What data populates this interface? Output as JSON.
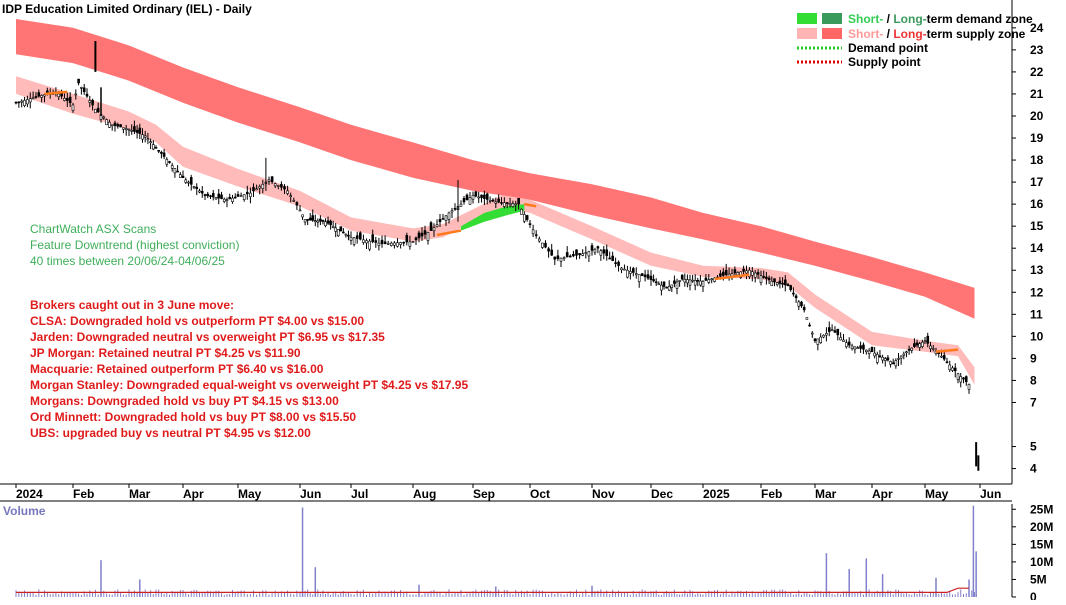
{
  "chart_data": {
    "type": "candlestick",
    "title": "IDP Education Limited Ordinary (IEL) - Daily",
    "y_ticks": [
      4,
      5,
      7,
      8,
      9,
      10,
      11,
      12,
      13,
      14,
      15,
      16,
      17,
      18,
      19,
      20,
      21,
      22,
      23,
      24
    ],
    "ylim": [
      3.3,
      24.9
    ],
    "x_ticks": [
      "2024",
      "Feb",
      "Mar",
      "Apr",
      "May",
      "Jun",
      "Jul",
      "Aug",
      "Sep",
      "Oct",
      "Nov",
      "Dec",
      "2025",
      "Feb",
      "Mar",
      "Apr",
      "May",
      "Jun"
    ],
    "legend": {
      "row1_short": "Short-",
      "row1_sep": " / ",
      "row1_long": "Long-",
      "row1_tail": "term demand zone",
      "row2_short": "Short-",
      "row2_sep": " / ",
      "row2_long": "Long-",
      "row2_tail": "term supply zone",
      "row3": "Demand point",
      "row4": "Supply point",
      "colors": {
        "short_demand": "#33dd33",
        "long_demand": "#3a9a5c",
        "short_supply": "#ffb3b3",
        "long_supply": "#ff6666",
        "demand_point": "#22cc22",
        "supply_point": "#dd0000",
        "text_green": "#33cc55",
        "text_pink": "#ff9999",
        "text_red": "#ee3333"
      }
    },
    "annotation_scan": [
      "ChartWatch ASX Scans",
      "Feature Downtrend (highest conviction)",
      "40 times between 20/06/24-04/06/25"
    ],
    "annotation_brokers_title": "Brokers caught out in 3 June move:",
    "annotation_brokers": [
      "CLSA: Downgraded hold vs outperform PT $4.00 vs $15.00",
      "Jarden: Downgraded neutral vs overweight PT $6.95 vs $17.35",
      "JP Morgan: Retained neutral PT $4.25 vs $11.90",
      "Macquarie: Retained outperform PT $6.40 vs $16.00",
      "Morgan Stanley: Downgraded equal-weight vs overweight PT $4.25 vs $17.95",
      "Morgans: Downgraded hold vs buy PT $4.15 vs $13.00",
      "Ord Minnett: Downgraded hold vs buy PT $8.00 vs $15.50",
      "UBS: upgraded buy vs neutral PT $4.95 vs $12.00"
    ],
    "volume": {
      "label": "Volume",
      "y_ticks": [
        "25M",
        "20M",
        "15M",
        "10M",
        "5M",
        "0"
      ],
      "tick_values": [
        25,
        20,
        15,
        10,
        5,
        0
      ],
      "ylim": [
        0,
        26.5
      ]
    },
    "price_series": [
      {
        "m": 0.0,
        "close": 20.6
      },
      {
        "m": 0.4,
        "close": 20.9
      },
      {
        "m": 0.7,
        "close": 21.1
      },
      {
        "m": 1.0,
        "close": 20.5
      },
      {
        "m": 1.1,
        "close": 21.5
      },
      {
        "m": 1.4,
        "close": 20.3
      },
      {
        "m": 1.7,
        "close": 19.6
      },
      {
        "m": 2.0,
        "close": 19.4
      },
      {
        "m": 2.3,
        "close": 19.1
      },
      {
        "m": 2.6,
        "close": 18.3
      },
      {
        "m": 3.0,
        "close": 17.2
      },
      {
        "m": 3.4,
        "close": 16.4
      },
      {
        "m": 3.8,
        "close": 16.2
      },
      {
        "m": 4.2,
        "close": 16.5
      },
      {
        "m": 4.5,
        "close": 17.1
      },
      {
        "m": 4.8,
        "close": 16.6
      },
      {
        "m": 5.1,
        "close": 15.3
      },
      {
        "m": 5.5,
        "close": 15.2
      },
      {
        "m": 6.0,
        "close": 14.5
      },
      {
        "m": 6.5,
        "close": 14.2
      },
      {
        "m": 7.0,
        "close": 14.3
      },
      {
        "m": 7.3,
        "close": 14.8
      },
      {
        "m": 7.6,
        "close": 15.6
      },
      {
        "m": 8.0,
        "close": 16.4
      },
      {
        "m": 8.4,
        "close": 16.1
      },
      {
        "m": 8.8,
        "close": 16.0
      },
      {
        "m": 9.1,
        "close": 14.6
      },
      {
        "m": 9.4,
        "close": 13.5
      },
      {
        "m": 9.8,
        "close": 13.7
      },
      {
        "m": 10.1,
        "close": 14.0
      },
      {
        "m": 10.5,
        "close": 13.1
      },
      {
        "m": 10.9,
        "close": 12.7
      },
      {
        "m": 11.3,
        "close": 12.2
      },
      {
        "m": 11.6,
        "close": 12.6
      },
      {
        "m": 12.0,
        "close": 12.5
      },
      {
        "m": 12.4,
        "close": 12.8
      },
      {
        "m": 12.8,
        "close": 13.0
      },
      {
        "m": 13.2,
        "close": 12.5
      },
      {
        "m": 13.5,
        "close": 12.3
      },
      {
        "m": 13.8,
        "close": 11.2
      },
      {
        "m": 14.0,
        "close": 9.8
      },
      {
        "m": 14.3,
        "close": 10.3
      },
      {
        "m": 14.6,
        "close": 9.6
      },
      {
        "m": 15.0,
        "close": 9.3
      },
      {
        "m": 15.4,
        "close": 8.8
      },
      {
        "m": 15.7,
        "close": 9.4
      },
      {
        "m": 16.0,
        "close": 9.8
      },
      {
        "m": 16.3,
        "close": 9.1
      },
      {
        "m": 16.6,
        "close": 8.3
      },
      {
        "m": 16.85,
        "close": 7.7
      },
      {
        "m": 16.95,
        "close": 4.3
      }
    ],
    "long_supply_zone": [
      {
        "m": 0.0,
        "lower": 22.8,
        "upper": 24.4
      },
      {
        "m": 1.0,
        "lower": 22.4,
        "upper": 24.0
      },
      {
        "m": 2.0,
        "lower": 21.6,
        "upper": 23.2
      },
      {
        "m": 3.0,
        "lower": 20.6,
        "upper": 22.2
      },
      {
        "m": 4.0,
        "lower": 19.7,
        "upper": 21.3
      },
      {
        "m": 5.0,
        "lower": 18.8,
        "upper": 20.4
      },
      {
        "m": 6.0,
        "lower": 18.0,
        "upper": 19.6
      },
      {
        "m": 7.0,
        "lower": 17.2,
        "upper": 18.8
      },
      {
        "m": 8.0,
        "lower": 16.6,
        "upper": 18.0
      },
      {
        "m": 9.0,
        "lower": 16.2,
        "upper": 17.4
      },
      {
        "m": 10.0,
        "lower": 15.5,
        "upper": 16.9
      },
      {
        "m": 11.0,
        "lower": 14.9,
        "upper": 16.3
      },
      {
        "m": 12.0,
        "lower": 14.4,
        "upper": 15.6
      },
      {
        "m": 13.0,
        "lower": 13.8,
        "upper": 15.0
      },
      {
        "m": 14.0,
        "lower": 13.2,
        "upper": 14.3
      },
      {
        "m": 15.0,
        "lower": 12.5,
        "upper": 13.6
      },
      {
        "m": 16.0,
        "lower": 11.8,
        "upper": 12.9
      },
      {
        "m": 16.9,
        "lower": 10.8,
        "upper": 12.2
      }
    ],
    "short_supply_zone": [
      {
        "m": 0.0,
        "lower": 21.0,
        "upper": 21.8
      },
      {
        "m": 1.0,
        "lower": 20.1,
        "upper": 21.0
      },
      {
        "m": 2.0,
        "lower": 19.4,
        "upper": 20.2
      },
      {
        "m": 2.5,
        "lower": 18.8,
        "upper": 19.6
      },
      {
        "m": 3.0,
        "lower": 17.7,
        "upper": 18.6
      },
      {
        "m": 4.0,
        "lower": 16.8,
        "upper": 17.6
      },
      {
        "m": 5.0,
        "lower": 15.9,
        "upper": 16.6
      },
      {
        "m": 6.0,
        "lower": 14.8,
        "upper": 15.4
      },
      {
        "m": 7.0,
        "lower": 14.3,
        "upper": 14.9
      },
      {
        "m": 7.5,
        "lower": 14.5,
        "upper": 15.1
      },
      {
        "m": 8.5,
        "lower": 15.8,
        "upper": 16.4
      },
      {
        "m": 9.0,
        "lower": 15.6,
        "upper": 16.2
      },
      {
        "m": 10.0,
        "lower": 14.4,
        "upper": 15.0
      },
      {
        "m": 11.0,
        "lower": 13.2,
        "upper": 13.8
      },
      {
        "m": 12.0,
        "lower": 12.7,
        "upper": 13.2
      },
      {
        "m": 13.0,
        "lower": 12.6,
        "upper": 13.1
      },
      {
        "m": 13.5,
        "lower": 12.3,
        "upper": 12.9
      },
      {
        "m": 14.0,
        "lower": 11.3,
        "upper": 11.9
      },
      {
        "m": 15.0,
        "lower": 9.6,
        "upper": 10.2
      },
      {
        "m": 16.0,
        "lower": 9.3,
        "upper": 9.8
      },
      {
        "m": 16.6,
        "lower": 9.1,
        "upper": 9.6
      },
      {
        "m": 16.9,
        "lower": 7.8,
        "upper": 8.6
      }
    ],
    "short_demand_zone": [
      {
        "m": 7.8,
        "lower": 14.8,
        "upper": 15.0
      },
      {
        "m": 8.2,
        "lower": 15.2,
        "upper": 15.6
      },
      {
        "m": 8.6,
        "lower": 15.5,
        "upper": 15.9
      },
      {
        "m": 8.9,
        "lower": 15.7,
        "upper": 16.0
      }
    ],
    "supply_point_segments": [
      {
        "m0": 0.5,
        "m1": 0.9,
        "v0": 21.0,
        "v1": 21.1
      },
      {
        "m0": 7.4,
        "m1": 7.8,
        "v0": 14.6,
        "v1": 14.8
      },
      {
        "m0": 8.9,
        "m1": 9.1,
        "v0": 16.0,
        "v1": 15.9
      },
      {
        "m0": 12.2,
        "m1": 12.8,
        "v0": 12.6,
        "v1": 12.8
      },
      {
        "m0": 16.2,
        "m1": 16.6,
        "v0": 9.3,
        "v1": 9.4
      }
    ],
    "volume_spikes": [
      {
        "m": 5.05,
        "v": 25.5
      },
      {
        "m": 1.5,
        "v": 10.5
      },
      {
        "m": 5.3,
        "v": 8.5
      },
      {
        "m": 2.2,
        "v": 5.0
      },
      {
        "m": 14.2,
        "v": 12.5
      },
      {
        "m": 14.6,
        "v": 8.0
      },
      {
        "m": 14.9,
        "v": 11.0
      },
      {
        "m": 15.2,
        "v": 6.5
      },
      {
        "m": 16.2,
        "v": 5.5
      },
      {
        "m": 16.88,
        "v": 26.0
      },
      {
        "m": 16.93,
        "v": 13.0
      },
      {
        "m": 16.8,
        "v": 5.0
      },
      {
        "m": 7.1,
        "v": 3.5
      },
      {
        "m": 8.4,
        "v": 3.0
      },
      {
        "m": 10.0,
        "v": 3.2
      }
    ]
  }
}
